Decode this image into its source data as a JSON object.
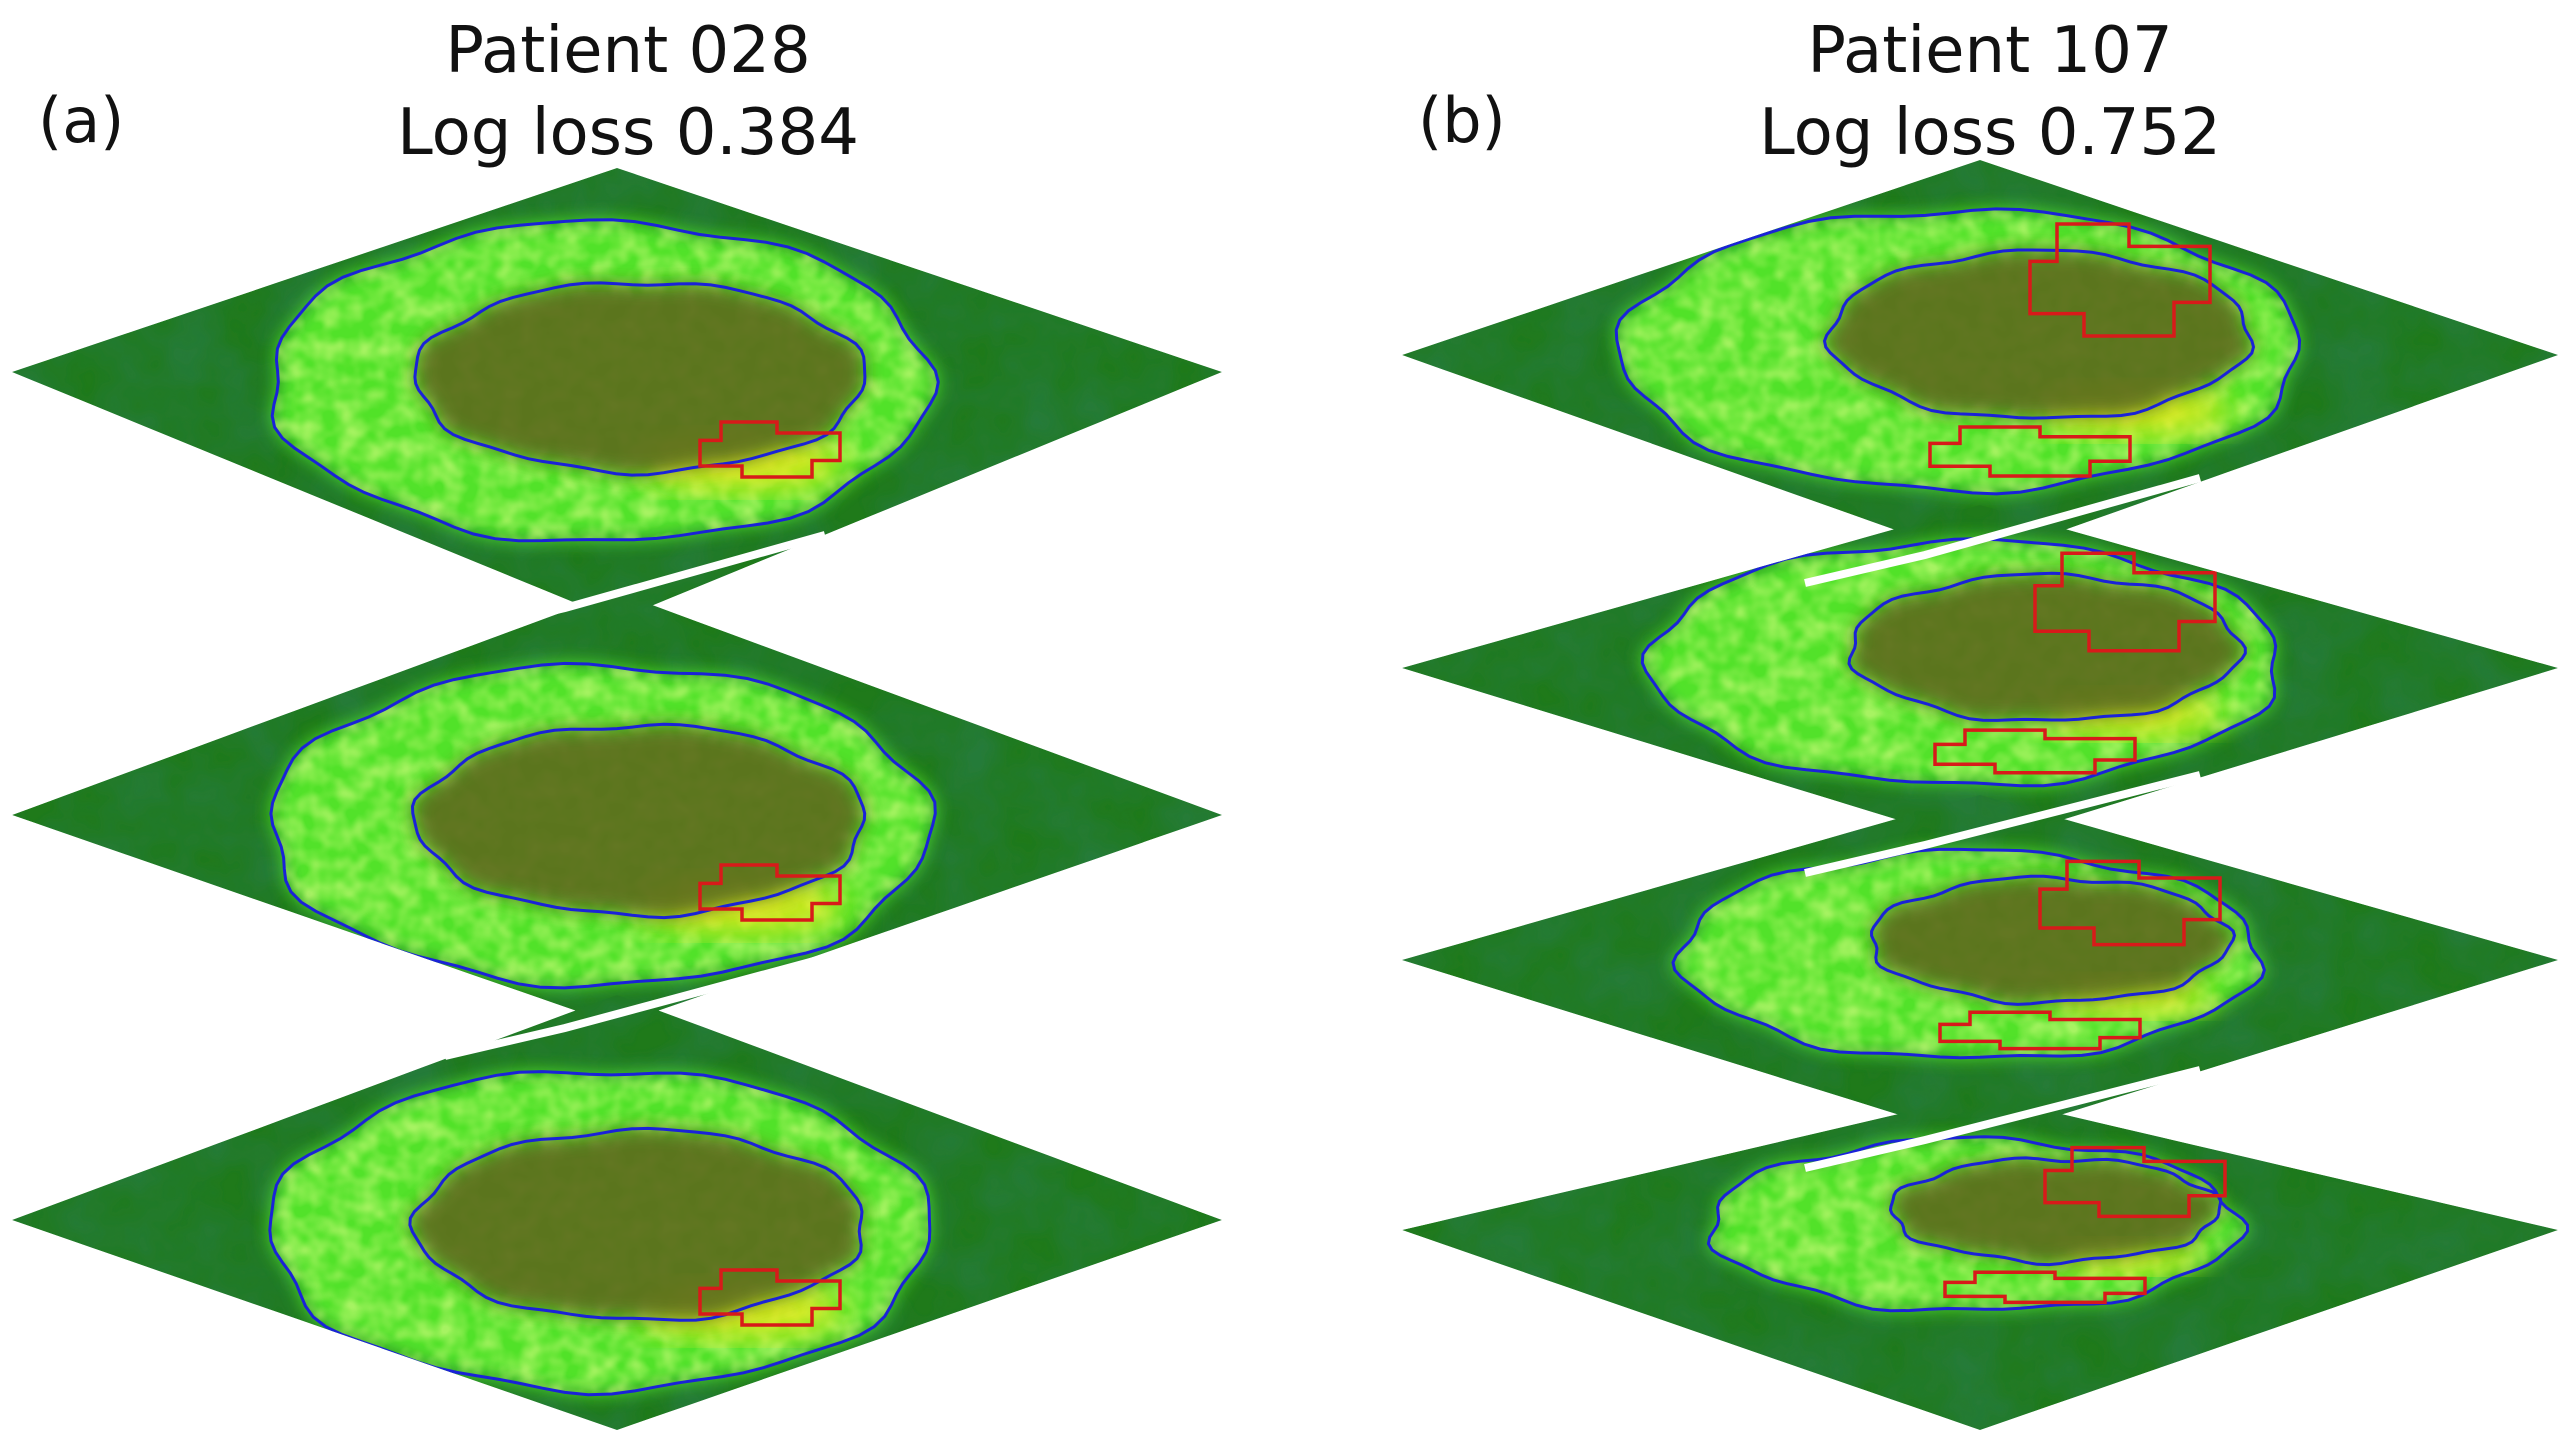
{
  "panels": [
    {
      "label": "(a)",
      "patient": "Patient 028",
      "log_loss": "Log loss 0.384",
      "slice_count": 3
    },
    {
      "label": "(b)",
      "patient": "Patient 107",
      "log_loss": "Log loss 0.752",
      "slice_count": 4
    }
  ],
  "colors": {
    "tissue_dark": "#0b3a12",
    "tissue_mid": "#1f7a1a",
    "myocardium_bright": "#55e82a",
    "hot_spot": "#f2ea1e",
    "cavity": "#5c6a1e",
    "blood_pool_contour": "#1a22d8",
    "lesion_contour": "#d81a1a",
    "separator": "#ffffff"
  }
}
